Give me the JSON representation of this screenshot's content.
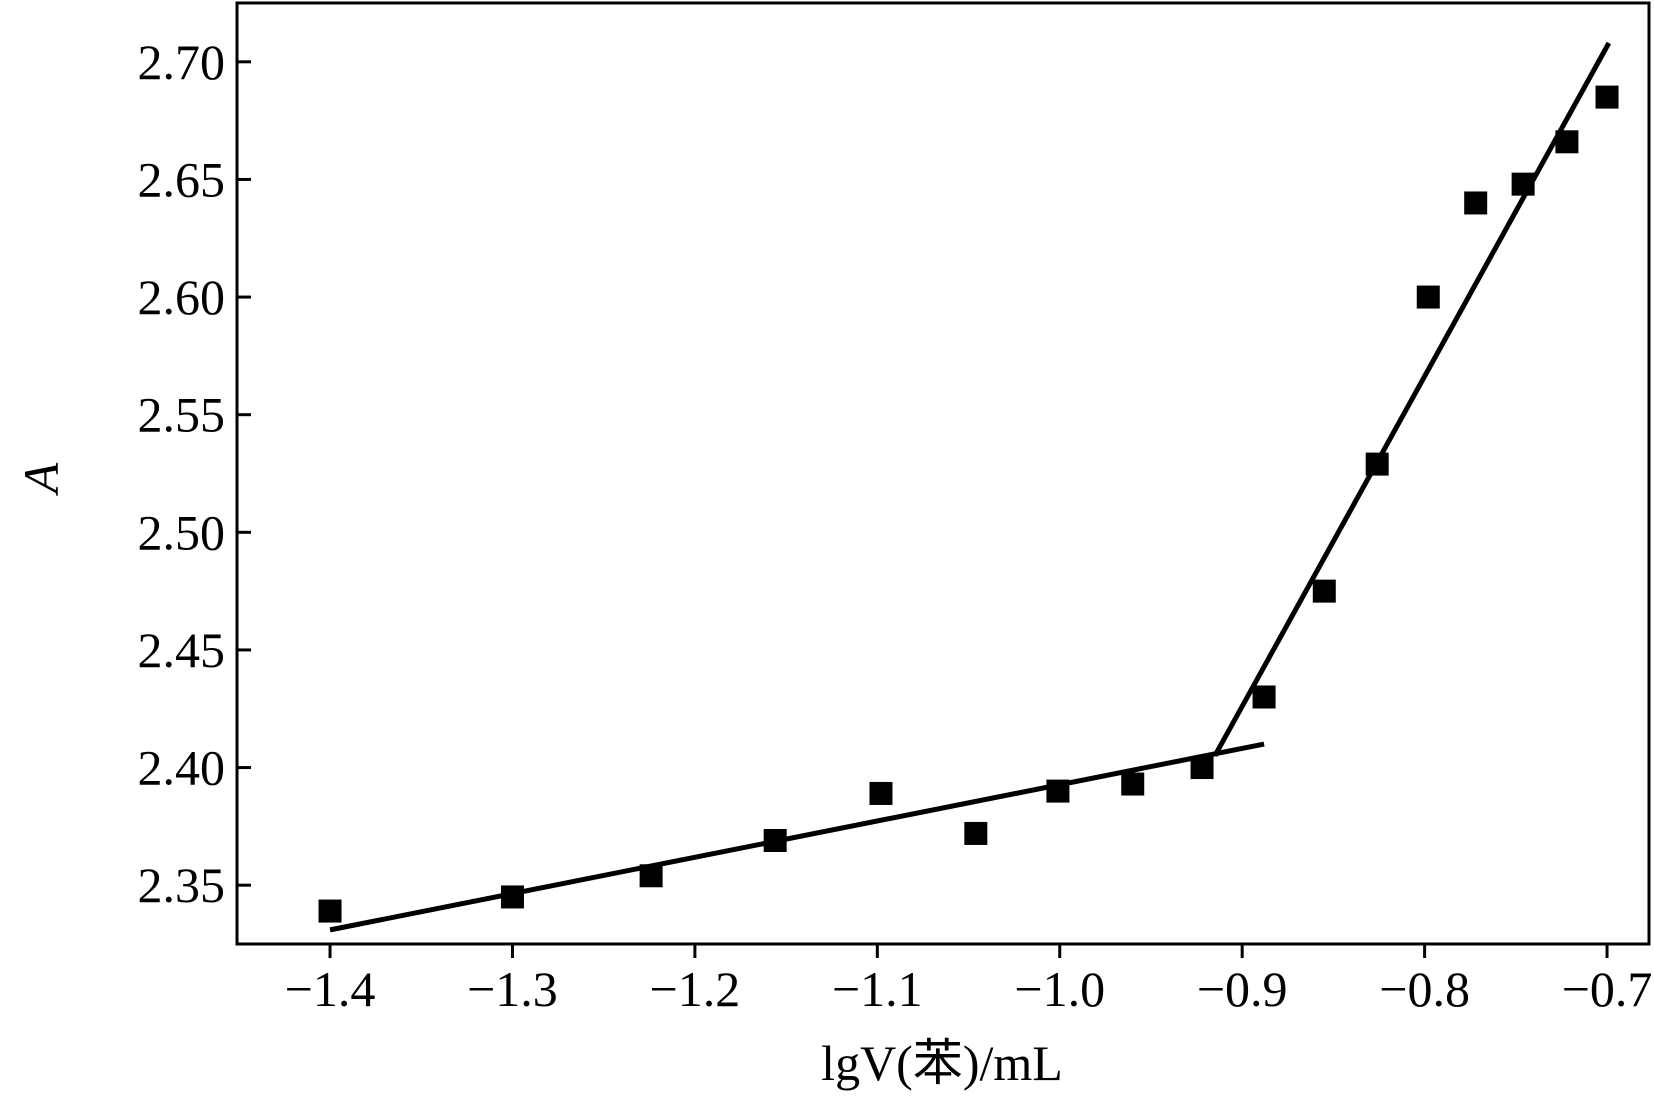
{
  "chart_data": {
    "type": "scatter",
    "x_label": "lgV(苯)/mL",
    "y_label": "A",
    "x": [
      -1.4,
      -1.3,
      -1.224,
      -1.156,
      -1.098,
      -1.046,
      -1.001,
      -0.96,
      -0.922,
      -0.888,
      -0.855,
      -0.826,
      -0.798,
      -0.772,
      -0.746,
      -0.722,
      -0.7
    ],
    "values": [
      2.339,
      2.345,
      2.354,
      2.369,
      2.389,
      2.372,
      2.39,
      2.393,
      2.4,
      2.43,
      2.475,
      2.529,
      2.6,
      2.64,
      2.648,
      2.666,
      2.685
    ],
    "color": "#000000",
    "fit_lines": [
      {
        "x": [
          -1.4,
          -0.888
        ],
        "values": [
          2.331,
          2.41
        ]
      },
      {
        "x": [
          -0.915,
          -0.699
        ],
        "values": [
          2.405,
          2.708
        ]
      }
    ],
    "xlim": [
      -1.451,
      -0.677
    ],
    "ylim": [
      2.325,
      2.725
    ],
    "xticks": [
      {
        "value": -1.4,
        "label": "−1.4"
      },
      {
        "value": -1.3,
        "label": "−1.3"
      },
      {
        "value": -1.2,
        "label": "−1.2"
      },
      {
        "value": -1.1,
        "label": "−1.1"
      },
      {
        "value": -1.0,
        "label": "−1.0"
      },
      {
        "value": -0.9,
        "label": "−0.9"
      },
      {
        "value": -0.8,
        "label": "−0.8"
      },
      {
        "value": -0.7,
        "label": "−0.7"
      }
    ],
    "yticks": [
      2.35,
      {
        "value": 2.4,
        "label": "2.40"
      },
      2.45,
      {
        "value": 2.5,
        "label": "2.50"
      },
      2.55,
      {
        "value": 2.6,
        "label": "2.60"
      },
      2.65,
      {
        "value": 2.7,
        "label": "2.70"
      }
    ],
    "grid": false
  }
}
